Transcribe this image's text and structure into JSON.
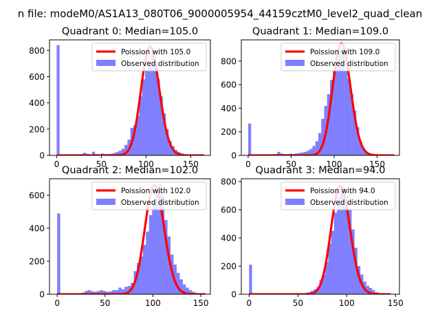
{
  "suptitle": "n file: modeM0/AS1A13_080T06_9000005954_44159cztM0_level2_quad_clean",
  "colors": {
    "observed": "#0000ff",
    "poisson": "#ff0000",
    "axis": "#000000"
  },
  "chart_data": [
    {
      "type": "bar",
      "title": "Quadrant 0: Median=105.0",
      "xlim": [
        -8,
        172
      ],
      "ylim": [
        0,
        880
      ],
      "xticks": [
        0,
        50,
        100,
        150
      ],
      "yticks": [
        0,
        200,
        400,
        600,
        800
      ],
      "bin_width": 3.3,
      "legend": {
        "placement": "top-right",
        "entries": [
          "Poission with 105.0",
          "Observed distribution"
        ]
      },
      "series": [
        {
          "name": "Observed distribution",
          "x": [
            0,
            26.4,
            29.7,
            33.0,
            36.3,
            39.6,
            42.9,
            46.2,
            49.5,
            52.8,
            56.1,
            59.4,
            62.7,
            66.0,
            69.3,
            72.6,
            75.9,
            79.2,
            82.5,
            85.8,
            89.1,
            92.4,
            95.7,
            99.0,
            102.3,
            105.6,
            108.9,
            112.2,
            115.5,
            118.8,
            122.1,
            125.4,
            128.7,
            132.0,
            135.3,
            138.6,
            141.9,
            145.2,
            148.5
          ],
          "values": [
            840,
            10,
            20,
            12,
            8,
            28,
            10,
            6,
            14,
            10,
            10,
            12,
            18,
            25,
            35,
            50,
            80,
            120,
            210,
            230,
            300,
            450,
            580,
            650,
            720,
            770,
            680,
            580,
            450,
            320,
            200,
            110,
            70,
            40,
            25,
            15,
            8,
            5,
            3
          ]
        },
        {
          "name": "Poission with 105.0",
          "lambda": 105.0,
          "scale": 830,
          "xrange": [
            0,
            165
          ]
        }
      ]
    },
    {
      "type": "bar",
      "title": "Quadrant 1: Median=109.0",
      "xlim": [
        -8,
        176
      ],
      "ylim": [
        0,
        980
      ],
      "xticks": [
        0,
        50,
        100,
        150
      ],
      "yticks": [
        0,
        200,
        400,
        600,
        800
      ],
      "bin_width": 3.4,
      "legend": {
        "placement": "top-right",
        "entries": [
          "Poission with 109.0",
          "Observed distribution"
        ]
      },
      "series": [
        {
          "name": "Observed distribution",
          "x": [
            0,
            27.2,
            30.6,
            34.0,
            37.4,
            40.8,
            44.2,
            47.6,
            51.0,
            54.4,
            57.8,
            61.2,
            64.6,
            68.0,
            71.4,
            74.8,
            78.2,
            81.6,
            85.0,
            88.4,
            91.8,
            95.2,
            98.6,
            102.0,
            105.4,
            108.8,
            112.2,
            115.6,
            119.0,
            122.4,
            125.8,
            129.2,
            132.6,
            136.0,
            139.4,
            142.8,
            146.2,
            149.6
          ],
          "values": [
            270,
            10,
            12,
            30,
            15,
            12,
            10,
            14,
            12,
            16,
            20,
            25,
            30,
            40,
            55,
            80,
            120,
            190,
            310,
            420,
            520,
            640,
            720,
            800,
            890,
            910,
            720,
            650,
            520,
            380,
            240,
            120,
            60,
            30,
            15,
            8,
            4,
            2
          ]
        },
        {
          "name": "Poission with 109.0",
          "lambda": 109.0,
          "scale": 950,
          "xrange": [
            0,
            170
          ]
        }
      ]
    },
    {
      "type": "bar",
      "title": "Quadrant 2: Median=102.0",
      "xlim": [
        -8,
        160
      ],
      "ylim": [
        0,
        700
      ],
      "xticks": [
        0,
        50,
        100,
        150
      ],
      "yticks": [
        0,
        200,
        400,
        600
      ],
      "bin_width": 3.2,
      "legend": {
        "placement": "top-right",
        "entries": [
          "Poission with 102.0",
          "Observed distribution"
        ]
      },
      "series": [
        {
          "name": "Observed distribution",
          "x": [
            0,
            25.6,
            28.8,
            32.0,
            35.2,
            38.4,
            41.6,
            44.8,
            48.0,
            51.2,
            54.4,
            57.6,
            60.8,
            64.0,
            67.2,
            70.4,
            73.6,
            76.8,
            80.0,
            83.2,
            86.4,
            89.6,
            92.8,
            96.0,
            99.2,
            102.4,
            105.6,
            108.8,
            112.0,
            115.2,
            118.4,
            121.6,
            124.8,
            128.0,
            131.2,
            134.4,
            137.6,
            140.8,
            144.0,
            147.2
          ],
          "values": [
            490,
            10,
            20,
            25,
            18,
            15,
            20,
            25,
            20,
            15,
            18,
            25,
            25,
            40,
            30,
            45,
            50,
            70,
            140,
            190,
            230,
            300,
            380,
            480,
            560,
            640,
            670,
            600,
            450,
            350,
            240,
            180,
            130,
            90,
            60,
            40,
            25,
            15,
            8,
            4
          ]
        },
        {
          "name": "Poission with 102.0",
          "lambda": 102.0,
          "scale": 660,
          "xrange": [
            0,
            155
          ]
        }
      ]
    },
    {
      "type": "bar",
      "title": "Quadrant 3: Median=94.0",
      "xlim": [
        -8,
        154
      ],
      "ylim": [
        0,
        820
      ],
      "xticks": [
        0,
        50,
        100,
        150
      ],
      "yticks": [
        0,
        200,
        400,
        600,
        800
      ],
      "bin_width": 3.0,
      "legend": {
        "placement": "top-right",
        "entries": [
          "Poission with 94.0",
          "Observed distribution"
        ]
      },
      "series": [
        {
          "name": "Observed distribution",
          "x": [
            0,
            54,
            57,
            60,
            63,
            66,
            69,
            72,
            75,
            78,
            81,
            84,
            87,
            90,
            93,
            96,
            99,
            102,
            105,
            108,
            111,
            114,
            117,
            120,
            123,
            126,
            129,
            132,
            135,
            138,
            141
          ],
          "values": [
            210,
            5,
            10,
            15,
            25,
            35,
            50,
            100,
            140,
            230,
            360,
            450,
            580,
            690,
            770,
            760,
            700,
            600,
            460,
            330,
            200,
            140,
            90,
            60,
            45,
            30,
            15,
            8,
            4,
            2,
            1
          ]
        },
        {
          "name": "Poission with 94.0",
          "lambda": 94.0,
          "scale": 770,
          "xrange": [
            0,
            145
          ]
        }
      ]
    }
  ]
}
